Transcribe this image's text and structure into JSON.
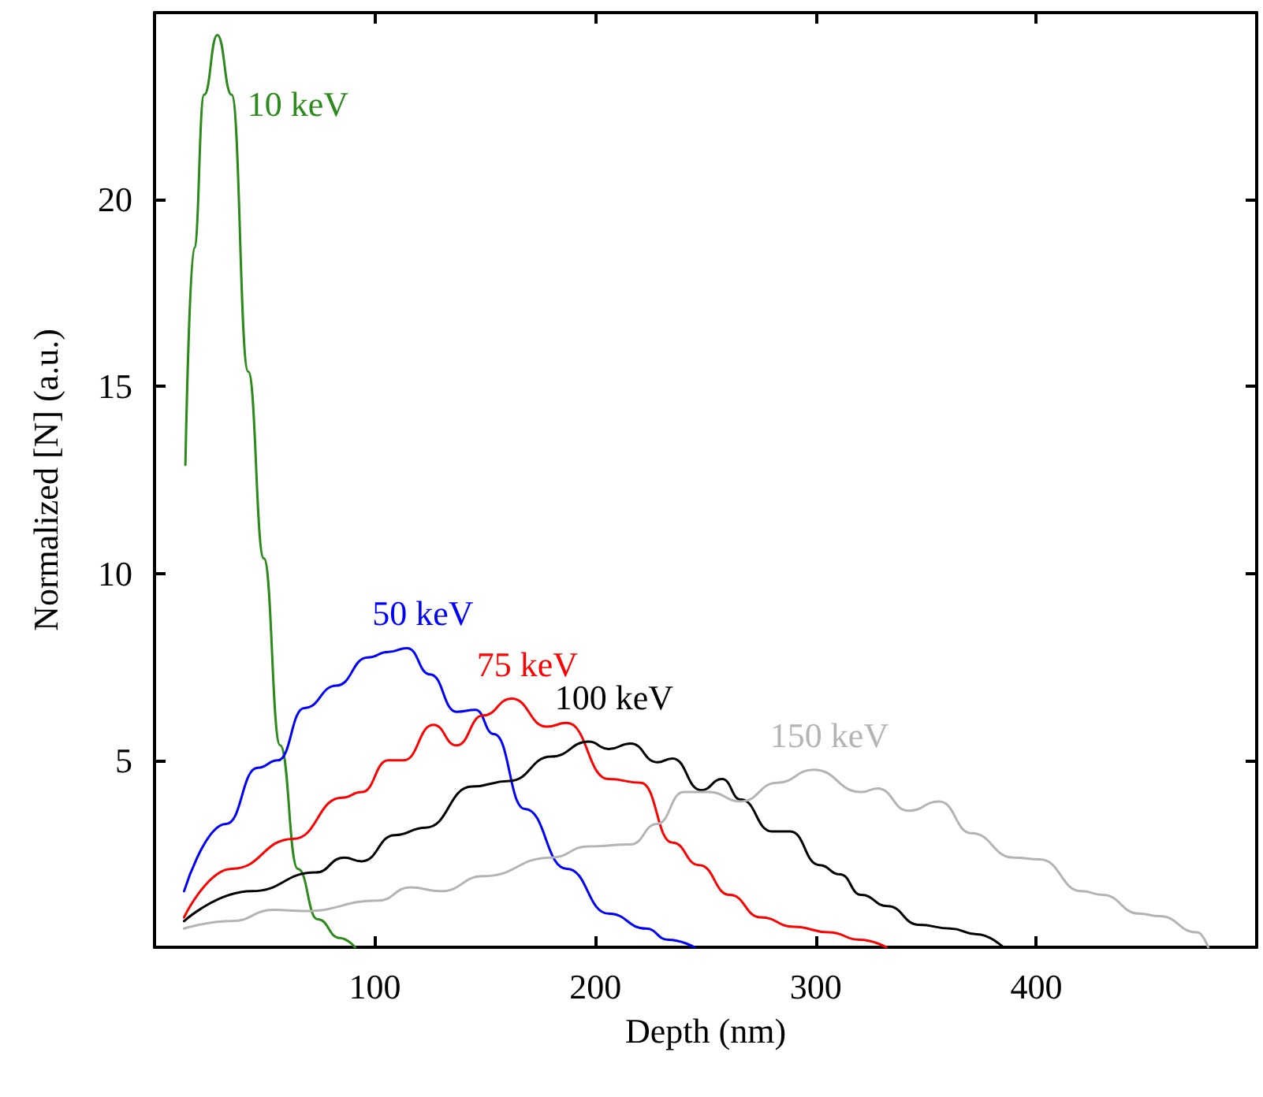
{
  "chart_data": {
    "type": "line",
    "xlabel": "Depth (nm)",
    "ylabel": "Normalized [N] (a.u.)",
    "xlim": [
      0,
      500
    ],
    "xticks": [
      100,
      200,
      300,
      400
    ],
    "ylim": [
      0,
      25
    ],
    "yticks": [
      5,
      10,
      15,
      20
    ],
    "grid": false,
    "legend": false,
    "marker": "none",
    "line_style": "solid",
    "series": [
      {
        "name": "10 keV",
        "color": "#2a8a1a",
        "x": [
          14,
          18,
          22.5,
          28.5,
          35,
          42.5,
          49.6,
          57,
          65,
          74,
          84,
          91
        ],
        "values": [
          12.9,
          18.7,
          22.8,
          24.4,
          22.8,
          15.4,
          10.4,
          5.4,
          2.1,
          0.75,
          0.25,
          0
        ]
      },
      {
        "name": "50 keV",
        "color": "#0000ff",
        "x": [
          13.4,
          32.5,
          46.8,
          56,
          68,
          82.5,
          96.8,
          106,
          114.6,
          125,
          137,
          145.6,
          154,
          168,
          187,
          206,
          223,
          233,
          245
        ],
        "values": [
          1.5,
          3.3,
          4.8,
          5.0,
          6.4,
          7.0,
          7.75,
          7.9,
          8.0,
          7.3,
          6.3,
          6.35,
          5.7,
          3.7,
          2.1,
          0.9,
          0.5,
          0.2,
          0
        ]
      },
      {
        "name": "75 keV",
        "color": "#ff0000",
        "x": [
          13.4,
          35,
          63,
          85,
          94,
          106,
          113,
          126.5,
          137,
          149,
          162,
          178,
          187,
          206,
          220.6,
          235,
          247,
          261,
          275,
          290,
          306,
          320,
          332
        ],
        "values": [
          0.8,
          2.1,
          2.9,
          4.0,
          4.15,
          5.0,
          5.0,
          5.95,
          5.4,
          6.2,
          6.65,
          5.9,
          6.0,
          4.5,
          4.4,
          2.8,
          2.2,
          1.4,
          0.8,
          0.55,
          0.4,
          0.2,
          0
        ]
      },
      {
        "name": "100 keV",
        "color": "#000000",
        "x": [
          13.4,
          44,
          73,
          86,
          94,
          109,
          123,
          144,
          161,
          180,
          197,
          206,
          216,
          228,
          235,
          248,
          257.5,
          266,
          280,
          288.4,
          301.6,
          311,
          320.6,
          332.5,
          346.8,
          361,
          373,
          385
        ],
        "values": [
          0.7,
          1.5,
          2.0,
          2.4,
          2.3,
          3.0,
          3.2,
          4.3,
          4.45,
          5.1,
          5.5,
          5.3,
          5.45,
          4.95,
          5.05,
          4.2,
          4.5,
          3.95,
          3.1,
          3.1,
          2.2,
          1.95,
          1.4,
          1.1,
          0.6,
          0.5,
          0.35,
          0
        ]
      },
      {
        "name": "150 keV",
        "color": "#b4b4b4",
        "x": [
          13.4,
          35,
          54,
          68,
          101.6,
          116,
          130,
          149,
          180,
          197,
          216,
          228,
          240,
          251.6,
          266,
          282.5,
          299,
          320.6,
          328,
          342,
          356,
          370.6,
          389.6,
          401.6,
          420.6,
          430,
          446.8,
          456,
          473,
          478
        ],
        "values": [
          0.5,
          0.7,
          1.0,
          0.97,
          1.25,
          1.6,
          1.5,
          1.9,
          2.4,
          2.7,
          2.75,
          3.3,
          4.15,
          4.15,
          3.9,
          4.4,
          4.75,
          4.15,
          4.25,
          3.65,
          3.9,
          3.05,
          2.4,
          2.35,
          1.5,
          1.4,
          0.9,
          0.83,
          0.4,
          0
        ]
      }
    ]
  }
}
